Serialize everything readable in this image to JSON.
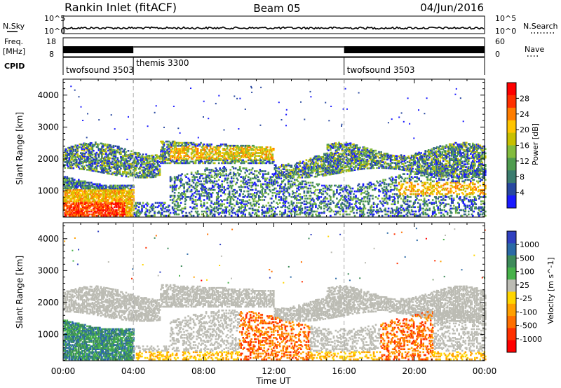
{
  "header": {
    "station": "Rankin Inlet (fitACF)",
    "beam": "Beam 05",
    "date": "04/Jun/2016"
  },
  "strip_labels": {
    "nsky": "N.Sky",
    "nsky_hi": "10^5",
    "nsky_lo": "10^0",
    "nsky_hi_r": "10^5",
    "nsky_lo_r": "10^0",
    "nsearch": "N.Search",
    "freq_line1": "Freq.",
    "freq_line2": "[MHz]",
    "freq_hi": "18",
    "freq_lo": "8",
    "nave_hi": "60",
    "nave_lo": "0",
    "nave": "Nave",
    "cpid": "CPID"
  },
  "cpid_segments": [
    {
      "label": "twofsound 3503",
      "start_hour": 0,
      "end_hour": 4
    },
    {
      "label": "themis 3300",
      "start_hour": 4,
      "end_hour": 16
    },
    {
      "label": "twofsound 3503",
      "start_hour": 16,
      "end_hour": 24
    }
  ],
  "power_colorbar": {
    "label": "Power [dB]",
    "ticks": [
      "28",
      "24",
      "20",
      "16",
      "12",
      "8",
      "4"
    ],
    "colors": [
      "#ff0000",
      "#ff3000",
      "#ff7d00",
      "#ffc500",
      "#c8c000",
      "#83bc3e",
      "#4f9c4f",
      "#3b7c6e",
      "#2848a0",
      "#1a1aff"
    ]
  },
  "velocity_colorbar": {
    "label": "Velocity [m s^-1]",
    "ticks": [
      "1000",
      "500",
      "100",
      "25",
      "-25",
      "-100",
      "-500",
      "-1000"
    ],
    "colors": [
      "#3040c0",
      "#2b6aa6",
      "#3d8b5a",
      "#47b24a",
      "#bcbcb4",
      "#ffd500",
      "#ffa000",
      "#ff7000",
      "#ff3000",
      "#ff0000"
    ]
  },
  "chart_data": {
    "type": "heatmap",
    "xlabel": "Time UT",
    "ylabel": "Slant Range [km]",
    "x_ticks": [
      "00:00",
      "04:00",
      "08:00",
      "12:00",
      "16:00",
      "20:00",
      "00:00"
    ],
    "y_ticks": [
      "1000",
      "2000",
      "3000",
      "4000"
    ],
    "xlim_hours": [
      0,
      24
    ],
    "ylim_km": [
      180,
      4500
    ],
    "mode_change_hours": [
      4,
      16
    ],
    "panels": [
      "Power [dB]",
      "Velocity [m s^-1]"
    ]
  }
}
